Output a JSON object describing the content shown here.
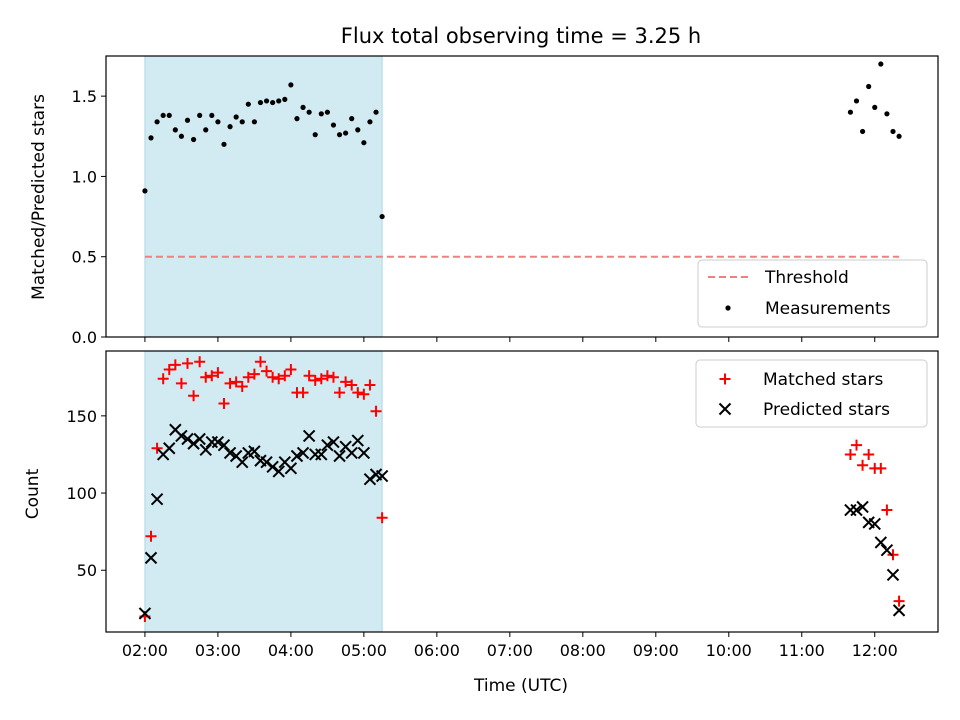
{
  "title": "Flux total observing time = 3.25 h",
  "colors": {
    "shade": "#add8e6",
    "threshold": "#f08080",
    "measurement": "#000000",
    "matched": "#ff0000",
    "predicted": "#000000"
  },
  "chart_data": [
    {
      "type": "scatter",
      "panel": "top",
      "title": "Flux total observing time = 3.25 h",
      "xlabel": "",
      "ylabel": "Matched/Predicted stars",
      "xlim": [
        "01:28",
        "12:52"
      ],
      "ylim": [
        0,
        1.75
      ],
      "yticks": [
        0.0,
        0.5,
        1.0,
        1.5
      ],
      "ytick_labels": [
        "0.0",
        "0.5",
        "1.0",
        "1.5"
      ],
      "xticks": [
        "02:00",
        "03:00",
        "04:00",
        "05:00",
        "06:00",
        "07:00",
        "08:00",
        "09:00",
        "10:00",
        "11:00",
        "12:00"
      ],
      "shaded_interval": [
        "02:00",
        "05:15"
      ],
      "legend_position": "lower right",
      "threshold": {
        "name": "Threshold",
        "y": 0.5,
        "x_range": [
          "02:00",
          "12:20"
        ],
        "style": "dashed"
      },
      "series": [
        {
          "name": "Measurements",
          "marker": "dot",
          "x": [
            "02:00",
            "02:05",
            "02:10",
            "02:15",
            "02:20",
            "02:25",
            "02:30",
            "02:35",
            "02:40",
            "02:45",
            "02:50",
            "02:55",
            "03:00",
            "03:05",
            "03:10",
            "03:15",
            "03:20",
            "03:25",
            "03:30",
            "03:35",
            "03:40",
            "03:45",
            "03:50",
            "03:55",
            "04:00",
            "04:05",
            "04:10",
            "04:15",
            "04:20",
            "04:25",
            "04:30",
            "04:35",
            "04:40",
            "04:45",
            "04:50",
            "04:55",
            "05:00",
            "05:05",
            "05:10",
            "05:15",
            "11:40",
            "11:45",
            "11:50",
            "11:55",
            "12:00",
            "12:05",
            "12:10",
            "12:15",
            "12:20"
          ],
          "y": [
            0.91,
            1.24,
            1.34,
            1.38,
            1.38,
            1.29,
            1.25,
            1.35,
            1.23,
            1.38,
            1.29,
            1.38,
            1.34,
            1.2,
            1.31,
            1.37,
            1.34,
            1.45,
            1.34,
            1.46,
            1.47,
            1.46,
            1.47,
            1.48,
            1.57,
            1.36,
            1.43,
            1.4,
            1.26,
            1.39,
            1.4,
            1.32,
            1.26,
            1.27,
            1.36,
            1.29,
            1.21,
            1.34,
            1.4,
            0.75,
            1.4,
            1.47,
            1.28,
            1.56,
            1.43,
            1.7,
            1.39,
            1.28,
            1.25
          ]
        }
      ]
    },
    {
      "type": "scatter",
      "panel": "bottom",
      "xlabel": "Time (UTC)",
      "ylabel": "Count",
      "xlim": [
        "01:28",
        "12:52"
      ],
      "ylim": [
        10,
        192
      ],
      "yticks": [
        50,
        100,
        150
      ],
      "ytick_labels": [
        "50",
        "100",
        "150"
      ],
      "xticks": [
        "02:00",
        "03:00",
        "04:00",
        "05:00",
        "06:00",
        "07:00",
        "08:00",
        "09:00",
        "10:00",
        "11:00",
        "12:00"
      ],
      "xtick_labels": [
        "02:00",
        "03:00",
        "04:00",
        "05:00",
        "06:00",
        "07:00",
        "08:00",
        "09:00",
        "10:00",
        "11:00",
        "12:00"
      ],
      "shaded_interval": [
        "02:00",
        "05:15"
      ],
      "legend_position": "upper right",
      "series": [
        {
          "name": "Matched stars",
          "marker": "plus",
          "x": [
            "02:00",
            "02:05",
            "02:10",
            "02:15",
            "02:20",
            "02:25",
            "02:30",
            "02:35",
            "02:40",
            "02:45",
            "02:50",
            "02:55",
            "03:00",
            "03:05",
            "03:10",
            "03:15",
            "03:20",
            "03:25",
            "03:30",
            "03:35",
            "03:40",
            "03:45",
            "03:50",
            "03:55",
            "04:00",
            "04:05",
            "04:10",
            "04:15",
            "04:20",
            "04:25",
            "04:30",
            "04:35",
            "04:40",
            "04:45",
            "04:50",
            "04:55",
            "05:00",
            "05:05",
            "05:10",
            "05:15",
            "11:40",
            "11:45",
            "11:50",
            "11:55",
            "12:00",
            "12:05",
            "12:10",
            "12:15",
            "12:20"
          ],
          "y": [
            20,
            72,
            129,
            174,
            180,
            183,
            171,
            184,
            163,
            185,
            175,
            176,
            178,
            158,
            171,
            172,
            169,
            175,
            177,
            185,
            179,
            175,
            174,
            176,
            180,
            165,
            165,
            176,
            173,
            174,
            176,
            175,
            165,
            172,
            170,
            165,
            164,
            170,
            153,
            84,
            125,
            131,
            118,
            125,
            116,
            116,
            89,
            60,
            30
          ]
        },
        {
          "name": "Predicted stars",
          "marker": "x",
          "x": [
            "02:00",
            "02:05",
            "02:10",
            "02:15",
            "02:20",
            "02:25",
            "02:30",
            "02:35",
            "02:40",
            "02:45",
            "02:50",
            "02:55",
            "03:00",
            "03:05",
            "03:10",
            "03:15",
            "03:20",
            "03:25",
            "03:30",
            "03:35",
            "03:40",
            "03:45",
            "03:50",
            "03:55",
            "04:00",
            "04:05",
            "04:10",
            "04:15",
            "04:20",
            "04:25",
            "04:30",
            "04:35",
            "04:40",
            "04:45",
            "04:50",
            "04:55",
            "05:00",
            "05:05",
            "05:10",
            "05:15",
            "11:40",
            "11:45",
            "11:50",
            "11:55",
            "12:00",
            "12:05",
            "12:10",
            "12:15",
            "12:20"
          ],
          "y": [
            22,
            58,
            96,
            125,
            129,
            141,
            137,
            135,
            132,
            135,
            128,
            133,
            133,
            131,
            126,
            124,
            120,
            126,
            127,
            121,
            120,
            117,
            114,
            120,
            116,
            124,
            126,
            137,
            125,
            125,
            131,
            133,
            124,
            130,
            126,
            134,
            126,
            109,
            112,
            111,
            89,
            89,
            91,
            81,
            80,
            68,
            63,
            47,
            24
          ]
        }
      ]
    }
  ]
}
